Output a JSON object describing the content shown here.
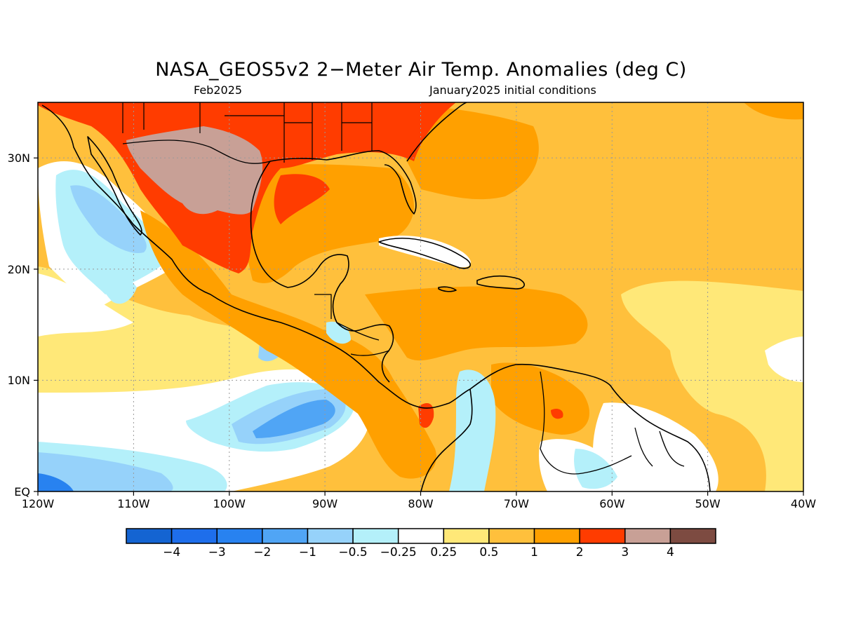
{
  "title": "NASA_GEOS5v2 2−Meter Air Temp. Anomalies (deg C)",
  "subtitle_left": "Feb2025",
  "subtitle_right": "January2025 initial conditions",
  "map": {
    "lon_range": [
      -120,
      -40
    ],
    "lat_range": [
      0,
      35
    ],
    "lon_ticks": [
      "120W",
      "110W",
      "100W",
      "90W",
      "80W",
      "70W",
      "60W",
      "50W",
      "40W"
    ],
    "lat_ticks": [
      "EQ",
      "10N",
      "20N",
      "30N"
    ],
    "grid": true
  },
  "colorbar": {
    "labels": [
      "−4",
      "−3",
      "−2",
      "−1",
      "−0.5",
      "−0.25",
      "0.25",
      "0.5",
      "1",
      "2",
      "3",
      "4"
    ],
    "colors": [
      "#1464d2",
      "#1e6eeb",
      "#2882f0",
      "#50a5f5",
      "#96d2fa",
      "#b4f0fa",
      "#ffffff",
      "#ffe878",
      "#ffc03c",
      "#ffa000",
      "#ff3c00",
      "#c8a096",
      "#7d4b41"
    ]
  },
  "chart_data": {
    "type": "heatmap",
    "title": "NASA_GEOS5v2 2−Meter Air Temp. Anomalies (deg C)",
    "valid": "Feb2025",
    "initial_conditions": "January2025 initial conditions",
    "units": "deg C",
    "region": {
      "lon": [
        -120,
        -40
      ],
      "lat": [
        0,
        35
      ]
    },
    "levels": [
      -4,
      -3,
      -2,
      -1,
      -0.5,
      -0.25,
      0.25,
      0.5,
      1,
      2,
      3,
      4
    ],
    "features": [
      {
        "region": "northern Mexico interior",
        "anomaly": ">4 (3 to 4)"
      },
      {
        "region": "northwest Mexico / southern US / Gulf coast",
        "anomaly": "2 to 3"
      },
      {
        "region": "Gulf of Mexico",
        "anomaly": "1 to 2"
      },
      {
        "region": "western Atlantic off SE US",
        "anomaly": "1 to 2"
      },
      {
        "region": "Caribbean Sea",
        "anomaly": "1 to 2"
      },
      {
        "region": "Pacific off Baja California",
        "anomaly": "-1 to -0.5"
      },
      {
        "region": "eastern Pacific near 7N 92W",
        "anomaly": "-1 to -0.5"
      },
      {
        "region": "eastern Pacific near EQ 120W",
        "anomaly": "-2 to -1"
      },
      {
        "region": "Panama",
        "anomaly": "2 to 3"
      },
      {
        "region": "northern Venezuela",
        "anomaly": "1 to 3"
      },
      {
        "region": "Guianas / Amazon",
        "anomaly": "-0.5 to 0.25"
      },
      {
        "region": "central tropical Atlantic",
        "anomaly": "0.25 to 1"
      }
    ]
  }
}
